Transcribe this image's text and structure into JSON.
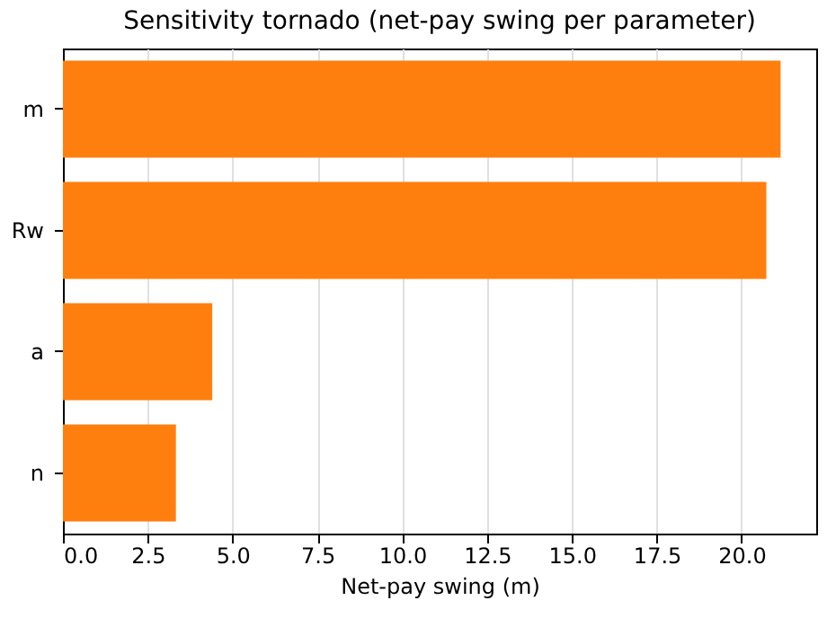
{
  "chart_data": {
    "type": "bar",
    "orientation": "horizontal",
    "title": "Sensitivity tornado (net-pay swing per parameter)",
    "xlabel": "Net-pay swing (m)",
    "categories": [
      "m",
      "Rw",
      "a",
      "n"
    ],
    "values": [
      21.15,
      20.73,
      4.4,
      3.33
    ],
    "color": "#ff7f0e",
    "xlim": [
      0,
      22.2
    ],
    "xticks": [
      {
        "value": 0,
        "label": "0.0"
      },
      {
        "value": 2.5,
        "label": "2.5"
      },
      {
        "value": 5,
        "label": "5.0"
      },
      {
        "value": 7.5,
        "label": "7.5"
      },
      {
        "value": 10,
        "label": "10.0"
      },
      {
        "value": 12.5,
        "label": "12.5"
      },
      {
        "value": 15,
        "label": "15.0"
      },
      {
        "value": 17.5,
        "label": "17.5"
      },
      {
        "value": 20,
        "label": "20.0"
      }
    ],
    "grid": "x"
  }
}
